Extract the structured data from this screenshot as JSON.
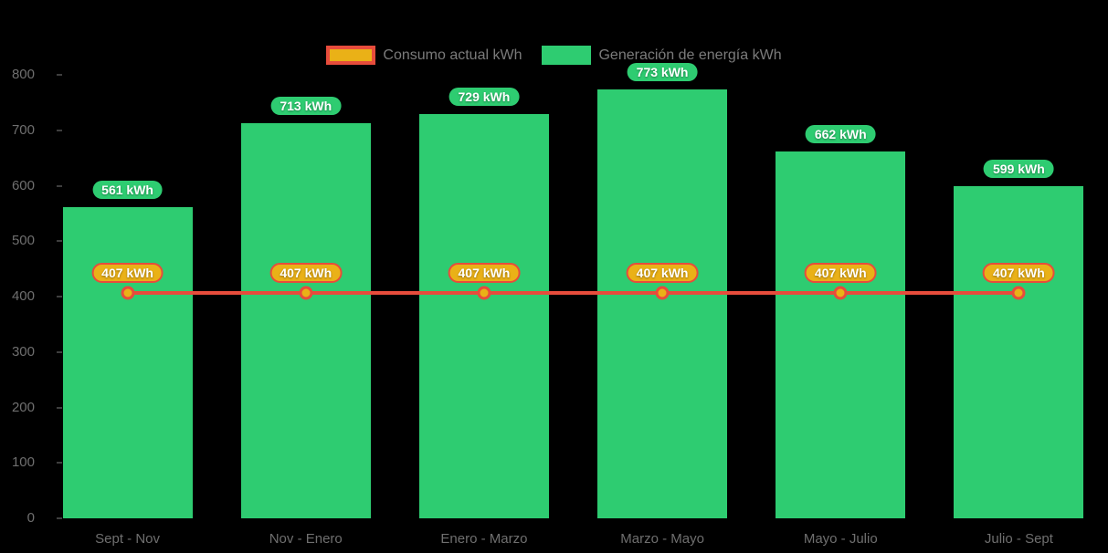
{
  "colors": {
    "background": "#000000",
    "bar_green": "#2ecc71",
    "line_red": "#e74c3c",
    "point_gold": "#eab117",
    "axis_text": "#6f6f6f",
    "legend_text": "#7b7b7b",
    "pill_text": "#ffffff"
  },
  "chart_data": {
    "type": "bar",
    "title": "",
    "categories": [
      "Sept - Nov",
      "Nov - Enero",
      "Enero - Marzo",
      "Marzo - Mayo",
      "Mayo - Julio",
      "Julio - Sept"
    ],
    "series": [
      {
        "name": "Generación de energía kWh",
        "type": "bar",
        "color": "#2ecc71",
        "values": [
          561,
          713,
          729,
          773,
          662,
          599
        ],
        "data_labels": [
          "561 kWh",
          "713 kWh",
          "729 kWh",
          "773 kWh",
          "662 kWh",
          "599 kWh"
        ]
      },
      {
        "name": "Consumo actual kWh",
        "type": "line",
        "color": "#e74c3c",
        "point_color": "#eab117",
        "values": [
          407,
          407,
          407,
          407,
          407,
          407
        ],
        "data_labels": [
          "407 kWh",
          "407 kWh",
          "407 kWh",
          "407 kWh",
          "407 kWh",
          "407 kWh"
        ]
      }
    ],
    "ylim": [
      0,
      800
    ],
    "yticks": [
      0,
      100,
      200,
      300,
      400,
      500,
      600,
      700,
      800
    ],
    "grid": false,
    "legend_position": "top-center",
    "legend": [
      {
        "label": "Consumo actual kWh"
      },
      {
        "label": "Generación de energía kWh"
      }
    ]
  }
}
